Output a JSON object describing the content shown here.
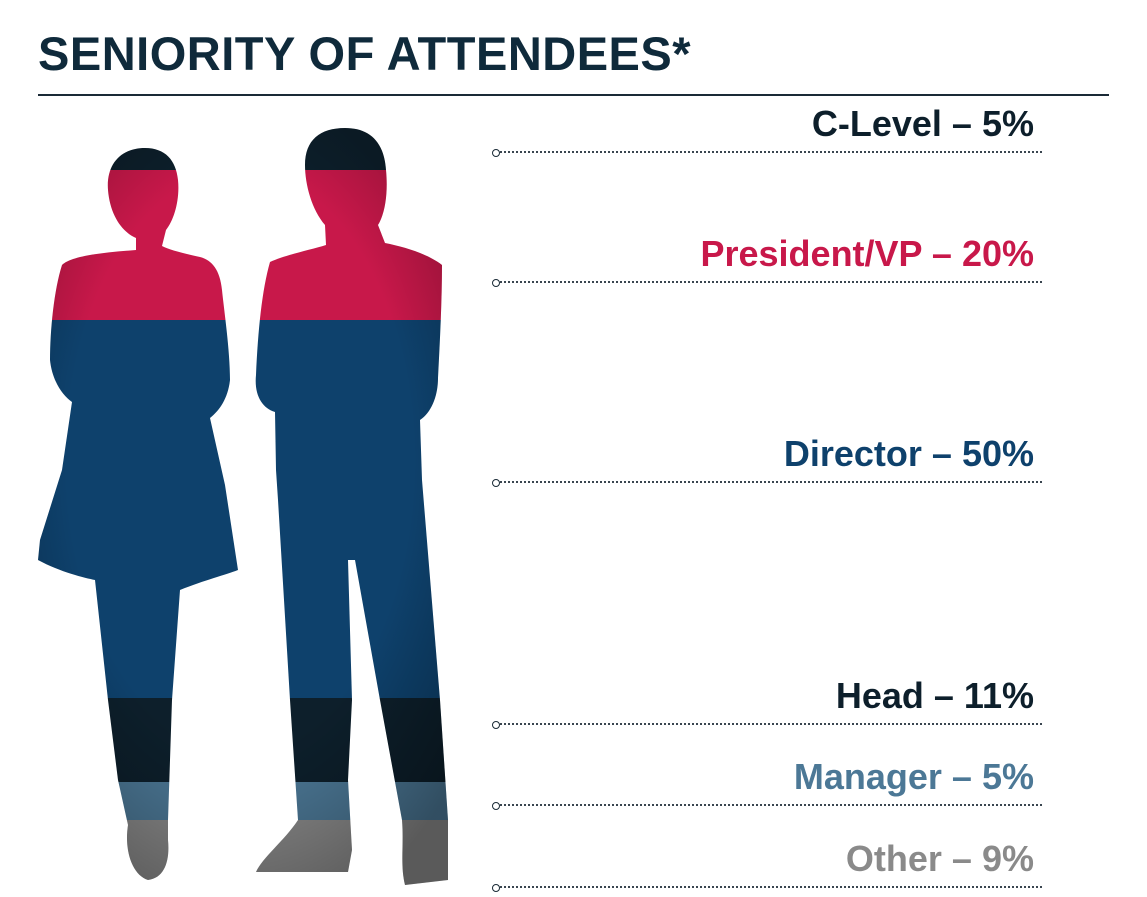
{
  "title": "SENIORITY OF ATTENDEES*",
  "chart_data": {
    "type": "bar",
    "title": "SENIORITY OF ATTENDEES*",
    "categories": [
      "C-Level",
      "President/VP",
      "Director",
      "Head",
      "Manager",
      "Other"
    ],
    "values": [
      5,
      20,
      50,
      11,
      5,
      9
    ],
    "unit": "%",
    "labels": [
      "C-Level – 5%",
      "President/VP – 20%",
      "Director – 50%",
      "Head – 11%",
      "Manager – 5%",
      "Other – 9%"
    ],
    "colors": [
      "#0d1f2b",
      "#c8184a",
      "#0e416c",
      "#0d1f2b",
      "#4c7896",
      "#8a8a8a"
    ]
  }
}
